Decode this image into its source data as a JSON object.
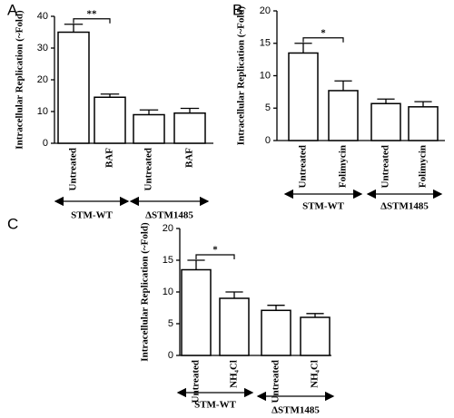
{
  "chart_data": [
    {
      "type": "bar",
      "panel_label": "A",
      "ylabel": "Intracellular Replication (~Fold)",
      "categories": [
        "Untreated",
        "BAF",
        "Untreated",
        "BAF"
      ],
      "values": [
        35,
        14.5,
        9,
        9.5
      ],
      "errors": [
        2.5,
        1,
        1.5,
        1.5
      ],
      "groups": [
        "STM-WT",
        "ΔSTM1485"
      ],
      "significance": "**",
      "ylim": [
        0,
        40
      ],
      "yticks": [
        0,
        10,
        20,
        30,
        40
      ],
      "color": "#ffffff"
    },
    {
      "type": "bar",
      "panel_label": "B",
      "ylabel": "Intracellular Replication (~Fold)",
      "categories": [
        "Untreated",
        "Folimycin",
        "Untreated",
        "Folimycin"
      ],
      "values": [
        13.5,
        7.7,
        5.7,
        5.2
      ],
      "errors": [
        1.5,
        1.5,
        0.7,
        0.8
      ],
      "groups": [
        "STM-WT",
        "ΔSTM1485"
      ],
      "significance": "*",
      "ylim": [
        0,
        20
      ],
      "yticks": [
        0,
        5,
        10,
        15,
        20
      ],
      "color": "#ffffff"
    },
    {
      "type": "bar",
      "panel_label": "C",
      "ylabel": "Intracellular Replication (~Fold)",
      "categories": [
        "Untreated",
        "NH₄Cl",
        "Untreated",
        "NH₄Cl"
      ],
      "values": [
        13.5,
        9,
        7.1,
        6
      ],
      "errors": [
        1.5,
        1,
        0.8,
        0.6
      ],
      "groups": [
        "STM-WT",
        "ΔSTM1485"
      ],
      "significance": "*",
      "ylim": [
        0,
        20
      ],
      "yticks": [
        0,
        5,
        10,
        15,
        20
      ],
      "color": "#ffffff"
    }
  ]
}
